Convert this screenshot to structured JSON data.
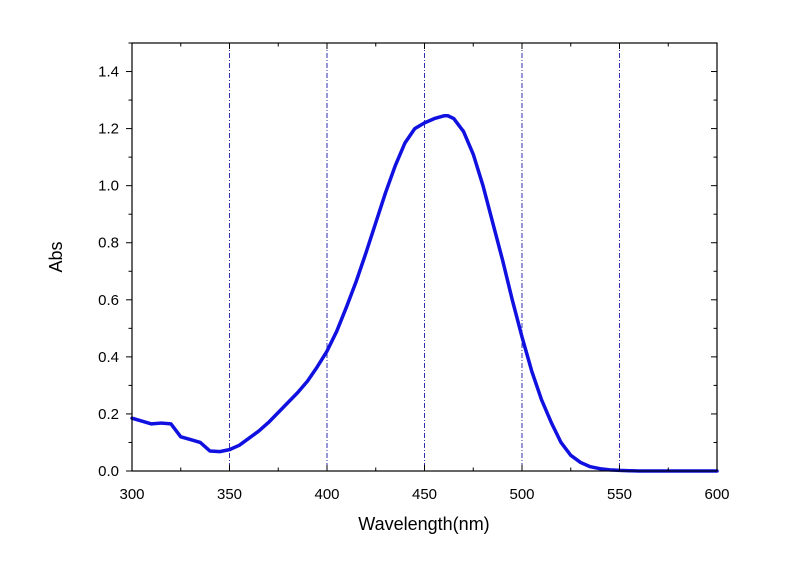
{
  "chart_data": {
    "type": "line",
    "xlabel": "Wavelength(nm)",
    "ylabel": "Abs",
    "xlim": [
      300,
      600
    ],
    "ylim": [
      0,
      1.5
    ],
    "x_ticks": [
      "300",
      "350",
      "400",
      "450",
      "500",
      "550",
      "600"
    ],
    "y_ticks": [
      "0.0",
      "0.2",
      "0.4",
      "0.6",
      "0.8",
      "1.0",
      "1.2",
      "1.4"
    ],
    "grid": "vertical dash-dot lines at major x ticks",
    "series": [
      {
        "color": "#1010e0",
        "x": [
          300,
          305,
          310,
          315,
          320,
          325,
          330,
          335,
          340,
          345,
          350,
          355,
          360,
          365,
          370,
          375,
          380,
          385,
          390,
          395,
          400,
          405,
          410,
          415,
          420,
          425,
          430,
          435,
          440,
          445,
          450,
          455,
          460,
          462,
          465,
          470,
          475,
          480,
          485,
          490,
          495,
          500,
          505,
          510,
          515,
          520,
          525,
          530,
          535,
          540,
          545,
          550,
          555,
          560,
          570,
          580,
          590,
          600
        ],
        "y": [
          0.185,
          0.175,
          0.165,
          0.168,
          0.165,
          0.12,
          0.11,
          0.1,
          0.07,
          0.068,
          0.075,
          0.09,
          0.115,
          0.14,
          0.17,
          0.205,
          0.24,
          0.275,
          0.315,
          0.365,
          0.42,
          0.49,
          0.575,
          0.665,
          0.765,
          0.87,
          0.975,
          1.07,
          1.15,
          1.2,
          1.22,
          1.235,
          1.245,
          1.245,
          1.235,
          1.19,
          1.11,
          1.0,
          0.87,
          0.74,
          0.6,
          0.47,
          0.35,
          0.25,
          0.17,
          0.1,
          0.055,
          0.03,
          0.015,
          0.008,
          0.004,
          0.002,
          0.001,
          0.0,
          0.0,
          0.0,
          0.0,
          0.0
        ]
      }
    ]
  }
}
